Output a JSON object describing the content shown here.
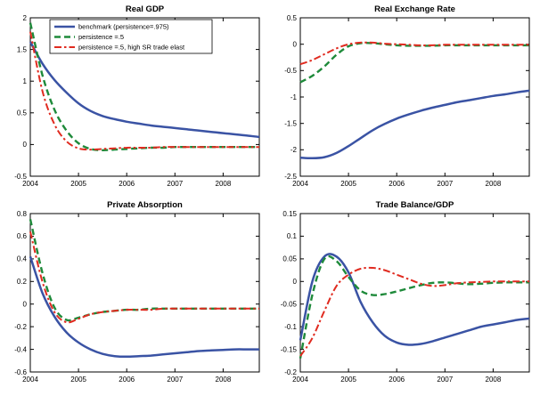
{
  "figure": {
    "background": "#ffffff"
  },
  "chart_data": [
    {
      "id": "real-gdp",
      "type": "line",
      "title": "Real GDP",
      "xlim": [
        2004,
        2008.75
      ],
      "ylim": [
        -0.5,
        2
      ],
      "xticks": [
        2004,
        2005,
        2006,
        2007,
        2008
      ],
      "yticks": [
        -0.5,
        0,
        0.5,
        1,
        1.5,
        2
      ],
      "legend": true,
      "x": [
        2004,
        2004.25,
        2004.5,
        2004.75,
        2005,
        2005.25,
        2005.5,
        2005.75,
        2006,
        2006.25,
        2006.5,
        2006.75,
        2007,
        2007.25,
        2007.5,
        2007.75,
        2008,
        2008.25,
        2008.5,
        2008.75
      ],
      "series": [
        {
          "name": "benchmark (persistence=.975)",
          "color": "#3a53a4",
          "style": "solid",
          "width": 2.5,
          "values": [
            1.62,
            1.28,
            1.02,
            0.82,
            0.65,
            0.53,
            0.45,
            0.4,
            0.36,
            0.33,
            0.3,
            0.28,
            0.26,
            0.24,
            0.22,
            0.2,
            0.18,
            0.16,
            0.14,
            0.12
          ]
        },
        {
          "name": "persistence =.5",
          "color": "#1e8a3a",
          "style": "dashed",
          "width": 2.4,
          "values": [
            1.92,
            1.1,
            0.55,
            0.22,
            0.02,
            -0.07,
            -0.09,
            -0.08,
            -0.07,
            -0.06,
            -0.05,
            -0.05,
            -0.04,
            -0.04,
            -0.04,
            -0.04,
            -0.04,
            -0.04,
            -0.04,
            -0.04
          ]
        },
        {
          "name": "persistence =.5, high SR trade elast",
          "color": "#e02b20",
          "style": "dashdot",
          "width": 2,
          "values": [
            1.78,
            0.85,
            0.32,
            0.05,
            -0.06,
            -0.08,
            -0.07,
            -0.06,
            -0.05,
            -0.05,
            -0.05,
            -0.04,
            -0.04,
            -0.04,
            -0.04,
            -0.04,
            -0.04,
            -0.04,
            -0.04,
            -0.04
          ]
        }
      ]
    },
    {
      "id": "real-exchange-rate",
      "type": "line",
      "title": "Real Exchange Rate",
      "xlim": [
        2004,
        2008.75
      ],
      "ylim": [
        -2.5,
        0.5
      ],
      "xticks": [
        2004,
        2005,
        2006,
        2007,
        2008
      ],
      "yticks": [
        -2.5,
        -2,
        -1.5,
        -1,
        -0.5,
        0,
        0.5
      ],
      "legend": false,
      "x": [
        2004,
        2004.25,
        2004.5,
        2004.75,
        2005,
        2005.25,
        2005.5,
        2005.75,
        2006,
        2006.25,
        2006.5,
        2006.75,
        2007,
        2007.25,
        2007.5,
        2007.75,
        2008,
        2008.25,
        2008.5,
        2008.75
      ],
      "series": [
        {
          "name": "benchmark (persistence=.975)",
          "color": "#3a53a4",
          "style": "solid",
          "width": 2.5,
          "values": [
            -2.15,
            -2.16,
            -2.14,
            -2.06,
            -1.93,
            -1.78,
            -1.63,
            -1.51,
            -1.41,
            -1.33,
            -1.26,
            -1.2,
            -1.15,
            -1.1,
            -1.06,
            -1.02,
            -0.98,
            -0.95,
            -0.91,
            -0.88
          ]
        },
        {
          "name": "persistence =.5",
          "color": "#1e8a3a",
          "style": "dashed",
          "width": 2.4,
          "values": [
            -0.72,
            -0.6,
            -0.42,
            -0.2,
            -0.04,
            0.02,
            0.02,
            0,
            -0.02,
            -0.03,
            -0.03,
            -0.03,
            -0.02,
            -0.02,
            -0.02,
            -0.02,
            -0.02,
            -0.02,
            -0.02,
            -0.02
          ]
        },
        {
          "name": "persistence =.5, high SR trade elast",
          "color": "#e02b20",
          "style": "dashdot",
          "width": 2,
          "values": [
            -0.38,
            -0.3,
            -0.19,
            -0.08,
            0,
            0.03,
            0.03,
            0.01,
            0,
            -0.01,
            -0.02,
            -0.02,
            -0.01,
            -0.01,
            -0.01,
            -0.01,
            -0.01,
            -0.01,
            -0.01,
            -0.01
          ]
        }
      ]
    },
    {
      "id": "private-absorption",
      "type": "line",
      "title": "Private Absorption",
      "xlim": [
        2004,
        2008.75
      ],
      "ylim": [
        -0.6,
        0.8
      ],
      "xticks": [
        2004,
        2005,
        2006,
        2007,
        2008
      ],
      "yticks": [
        -0.6,
        -0.4,
        -0.2,
        0,
        0.2,
        0.4,
        0.6,
        0.8
      ],
      "legend": false,
      "x": [
        2004,
        2004.25,
        2004.5,
        2004.75,
        2005,
        2005.25,
        2005.5,
        2005.75,
        2006,
        2006.25,
        2006.5,
        2006.75,
        2007,
        2007.25,
        2007.5,
        2007.75,
        2008,
        2008.25,
        2008.5,
        2008.75
      ],
      "series": [
        {
          "name": "benchmark (persistence=.975)",
          "color": "#3a53a4",
          "style": "solid",
          "width": 2.5,
          "values": [
            0.42,
            0.1,
            -0.11,
            -0.25,
            -0.34,
            -0.4,
            -0.44,
            -0.46,
            -0.465,
            -0.46,
            -0.455,
            -0.445,
            -0.435,
            -0.425,
            -0.415,
            -0.41,
            -0.405,
            -0.4,
            -0.4,
            -0.4
          ]
        },
        {
          "name": "persistence =.5",
          "color": "#1e8a3a",
          "style": "dashed",
          "width": 2.4,
          "values": [
            0.75,
            0.28,
            -0.03,
            -0.14,
            -0.12,
            -0.09,
            -0.07,
            -0.06,
            -0.05,
            -0.05,
            -0.04,
            -0.04,
            -0.04,
            -0.04,
            -0.04,
            -0.04,
            -0.04,
            -0.04,
            -0.04,
            -0.04
          ]
        },
        {
          "name": "persistence =.5, high SR trade elast",
          "color": "#e02b20",
          "style": "dashdot",
          "width": 2,
          "values": [
            0.64,
            0.2,
            -0.07,
            -0.16,
            -0.13,
            -0.09,
            -0.07,
            -0.06,
            -0.05,
            -0.05,
            -0.05,
            -0.04,
            -0.04,
            -0.04,
            -0.04,
            -0.04,
            -0.04,
            -0.04,
            -0.04,
            -0.04
          ]
        }
      ]
    },
    {
      "id": "trade-balance-gdp",
      "type": "line",
      "title": "Trade Balance/GDP",
      "xlim": [
        2004,
        2008.75
      ],
      "ylim": [
        -0.2,
        0.15
      ],
      "xticks": [
        2004,
        2005,
        2006,
        2007,
        2008
      ],
      "yticks": [
        -0.2,
        -0.15,
        -0.1,
        -0.05,
        0,
        0.05,
        0.1,
        0.15
      ],
      "legend": false,
      "x": [
        2004,
        2004.25,
        2004.5,
        2004.75,
        2005,
        2005.25,
        2005.5,
        2005.75,
        2006,
        2006.25,
        2006.5,
        2006.75,
        2007,
        2007.25,
        2007.5,
        2007.75,
        2008,
        2008.25,
        2008.5,
        2008.75
      ],
      "series": [
        {
          "name": "benchmark (persistence=.975)",
          "color": "#3a53a4",
          "style": "solid",
          "width": 2.5,
          "values": [
            -0.13,
            0,
            0.055,
            0.055,
            0.02,
            -0.045,
            -0.09,
            -0.12,
            -0.135,
            -0.14,
            -0.138,
            -0.132,
            -0.124,
            -0.116,
            -0.108,
            -0.1,
            -0.095,
            -0.09,
            -0.085,
            -0.082
          ]
        },
        {
          "name": "persistence =.5",
          "color": "#1e8a3a",
          "style": "dashed",
          "width": 2.4,
          "values": [
            -0.17,
            -0.03,
            0.05,
            0.045,
            0.01,
            -0.02,
            -0.03,
            -0.028,
            -0.022,
            -0.015,
            -0.008,
            -0.003,
            -0.002,
            -0.004,
            -0.006,
            -0.005,
            -0.003,
            -0.002,
            -0.002,
            -0.002
          ]
        },
        {
          "name": "persistence =.5, high SR trade elast",
          "color": "#e02b20",
          "style": "dashdot",
          "width": 2,
          "values": [
            -0.165,
            -0.125,
            -0.065,
            -0.01,
            0.015,
            0.028,
            0.03,
            0.025,
            0.015,
            0.005,
            -0.005,
            -0.01,
            -0.008,
            -0.004,
            -0.002,
            -0.001,
            0,
            0,
            0,
            0
          ]
        }
      ]
    }
  ]
}
